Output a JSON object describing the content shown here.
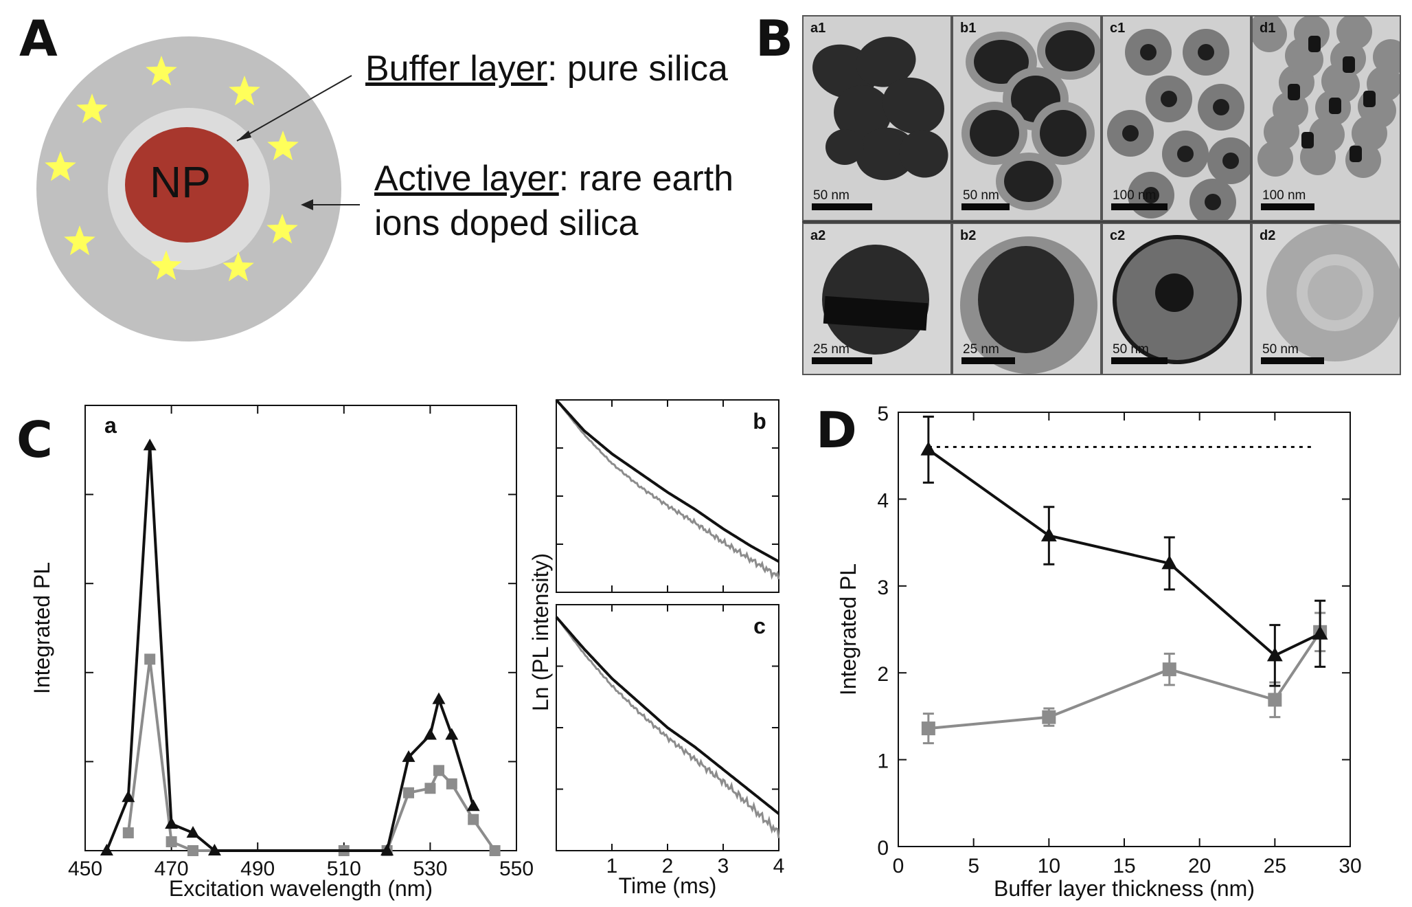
{
  "panels": {
    "A": "A",
    "B": "B",
    "C": "C",
    "D": "D"
  },
  "panelA": {
    "np_label": "NP",
    "buffer_keyword": "Buffer layer",
    "buffer_rest": ": pure silica",
    "active_keyword": "Active layer",
    "active_rest": ": rare earth",
    "active_line2": "ions doped silica",
    "colors": {
      "shell": "#c0c0c0",
      "buffer": "#dcdcdc",
      "core": "#a8372d",
      "star": "#ffff5a"
    }
  },
  "panelB": {
    "cells": [
      {
        "label": "a1",
        "scale": "50 nm"
      },
      {
        "label": "b1",
        "scale": "50 nm"
      },
      {
        "label": "c1",
        "scale": "100 nm"
      },
      {
        "label": "d1",
        "scale": "100 nm"
      },
      {
        "label": "a2",
        "scale": "25 nm"
      },
      {
        "label": "b2",
        "scale": "25 nm"
      },
      {
        "label": "c2",
        "scale": "50 nm"
      },
      {
        "label": "d2",
        "scale": "50 nm"
      }
    ]
  },
  "chart_data": [
    {
      "panel": "Ca",
      "subpanel_label": "a",
      "type": "line",
      "xlabel": "Excitation wavelength (nm)",
      "ylabel": "Integrated PL",
      "xlim": [
        450,
        550
      ],
      "ylim": [
        0,
        1
      ],
      "xticks": [
        "450",
        "470",
        "490",
        "510",
        "530",
        "550"
      ],
      "series": [
        {
          "color": "#111111",
          "marker": "triangle",
          "x": [
            455,
            460,
            465,
            470,
            475,
            480,
            520,
            525,
            530,
            532,
            535,
            540
          ],
          "y": [
            0.0,
            0.12,
            0.91,
            0.06,
            0.04,
            0.0,
            0.0,
            0.21,
            0.26,
            0.34,
            0.26,
            0.1
          ]
        },
        {
          "color": "#8c8c8c",
          "marker": "square",
          "x": [
            460,
            465,
            470,
            475,
            510,
            520,
            525,
            530,
            532,
            535,
            540,
            545
          ],
          "y": [
            0.04,
            0.43,
            0.02,
            0.0,
            0.0,
            0.0,
            0.13,
            0.14,
            0.18,
            0.15,
            0.07,
            0.0
          ]
        }
      ]
    },
    {
      "panel": "Cb",
      "subpanel_label": "b",
      "type": "line",
      "ylabel": "Ln (PL intensity)",
      "xlim": [
        0,
        4
      ],
      "series": [
        {
          "color": "#111111",
          "x": [
            0,
            0.5,
            1,
            1.5,
            2,
            2.5,
            3,
            3.5,
            4
          ],
          "y": [
            1.0,
            0.84,
            0.72,
            0.62,
            0.52,
            0.43,
            0.33,
            0.24,
            0.16
          ]
        },
        {
          "color": "#8c8c8c",
          "x": [
            0,
            0.5,
            1,
            1.5,
            2,
            2.5,
            3,
            3.5,
            4
          ],
          "y": [
            1.0,
            0.82,
            0.67,
            0.55,
            0.45,
            0.36,
            0.26,
            0.17,
            0.08
          ]
        }
      ]
    },
    {
      "panel": "Cc",
      "subpanel_label": "c",
      "type": "line",
      "xlabel": "Time (ms)",
      "xlim": [
        0,
        4
      ],
      "xticks": [
        "1",
        "2",
        "3",
        "4"
      ],
      "series": [
        {
          "color": "#111111",
          "x": [
            0,
            0.5,
            1,
            1.5,
            2,
            2.5,
            3,
            3.5,
            4
          ],
          "y": [
            0.95,
            0.82,
            0.7,
            0.6,
            0.5,
            0.42,
            0.33,
            0.24,
            0.15
          ]
        },
        {
          "color": "#8c8c8c",
          "x": [
            0,
            0.5,
            1,
            1.5,
            2,
            2.5,
            3,
            3.5,
            4
          ],
          "y": [
            0.95,
            0.8,
            0.67,
            0.56,
            0.46,
            0.37,
            0.28,
            0.18,
            0.07
          ]
        }
      ]
    },
    {
      "panel": "D",
      "type": "line",
      "xlabel": "Buffer layer thickness (nm)",
      "ylabel": "Integrated PL",
      "xlim": [
        0,
        30
      ],
      "ylim": [
        0,
        5
      ],
      "xticks": [
        "0",
        "5",
        "10",
        "15",
        "20",
        "25",
        "30"
      ],
      "yticks": [
        "0",
        "1",
        "2",
        "3",
        "4",
        "5"
      ],
      "reference_line": 4.6,
      "series": [
        {
          "color": "#111111",
          "marker": "triangle",
          "x": [
            2,
            10,
            18,
            25,
            28
          ],
          "y": [
            4.57,
            3.58,
            3.26,
            2.2,
            2.45
          ],
          "err": [
            0.38,
            0.33,
            0.3,
            0.35,
            0.38
          ]
        },
        {
          "color": "#8c8c8c",
          "marker": "square",
          "x": [
            2,
            10,
            18,
            25,
            28
          ],
          "y": [
            1.36,
            1.49,
            2.04,
            1.69,
            2.47
          ],
          "err": [
            0.17,
            0.1,
            0.18,
            0.2,
            0.22
          ]
        }
      ]
    }
  ]
}
